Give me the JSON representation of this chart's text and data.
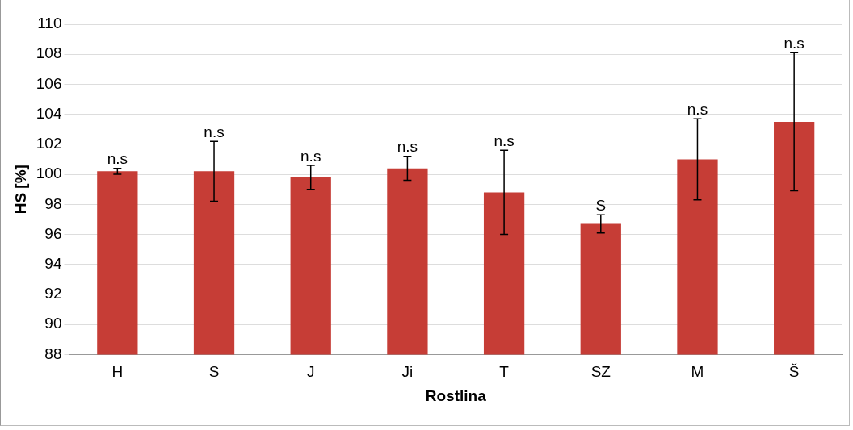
{
  "chart_data": {
    "type": "bar",
    "xlabel": "Rostlina",
    "ylabel": "HS [%]",
    "categories": [
      "H",
      "S",
      "J",
      "Ji",
      "T",
      "SZ",
      "M",
      "Š"
    ],
    "values": [
      100.2,
      100.2,
      99.8,
      100.4,
      98.8,
      96.7,
      101.0,
      103.5
    ],
    "errors": [
      0.2,
      2.0,
      0.8,
      0.8,
      2.8,
      0.6,
      2.7,
      4.6
    ],
    "color": "#c63d36",
    "ylim": [
      88,
      110
    ],
    "yticks": [
      88,
      90,
      92,
      94,
      96,
      98,
      100,
      102,
      104,
      106,
      108,
      110
    ],
    "grid": "y",
    "annotations": [
      {
        "text": "n.s",
        "x": "H",
        "y": 100.4
      },
      {
        "text": "n.s",
        "x": "S",
        "y": 102.2
      },
      {
        "text": "n.s",
        "x": "J",
        "y": 100.6
      },
      {
        "text": "n.s",
        "x": "Ji",
        "y": 101.2
      },
      {
        "text": "n.s",
        "x": "T",
        "y": 101.6
      },
      {
        "text": "S",
        "x": "SZ",
        "y": 97.3
      },
      {
        "text": "n.s",
        "x": "M",
        "y": 103.7
      },
      {
        "text": "n.s",
        "x": "Š",
        "y": 108.1
      }
    ]
  }
}
